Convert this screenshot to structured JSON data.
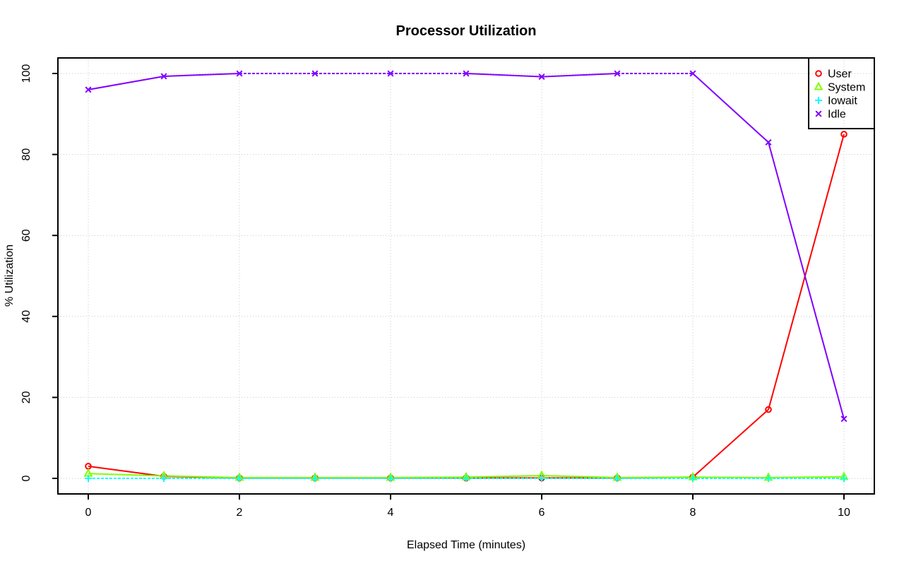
{
  "chart_data": {
    "type": "line",
    "title": "Processor Utilization",
    "xlabel": "Elapsed Time (minutes)",
    "ylabel": "% Utilization",
    "x": [
      0,
      1,
      2,
      3,
      4,
      5,
      6,
      7,
      8,
      9,
      10
    ],
    "xticks": [
      0,
      2,
      4,
      6,
      8,
      10
    ],
    "yticks": [
      0,
      20,
      40,
      60,
      80,
      100
    ],
    "xlim": [
      -0.4,
      10.4
    ],
    "ylim": [
      -4,
      104
    ],
    "grid": "dotted",
    "grid_color": "#c8c8c8",
    "background": "#ffffff",
    "axis_color": "#000000",
    "legend_position": "top-right",
    "series": [
      {
        "name": "User",
        "color": "#ff0000",
        "marker": "circle",
        "values": [
          3,
          0.5,
          0.1,
          0.1,
          0.1,
          0.1,
          0.1,
          0.1,
          0.3,
          17,
          85
        ]
      },
      {
        "name": "System",
        "color": "#80ff00",
        "marker": "triangle",
        "values": [
          1.2,
          0.6,
          0.2,
          0.2,
          0.2,
          0.3,
          0.7,
          0.2,
          0.3,
          0.2,
          0.4
        ]
      },
      {
        "name": "Iowait",
        "color": "#00ffff",
        "marker": "plus",
        "values": [
          0,
          0,
          0,
          0,
          0,
          0,
          0,
          0,
          0,
          0,
          0
        ]
      },
      {
        "name": "Idle",
        "color": "#8000ff",
        "marker": "x",
        "values": [
          96,
          99.3,
          100,
          100,
          100,
          100,
          99.2,
          100,
          100,
          83,
          14.7
        ]
      }
    ]
  }
}
